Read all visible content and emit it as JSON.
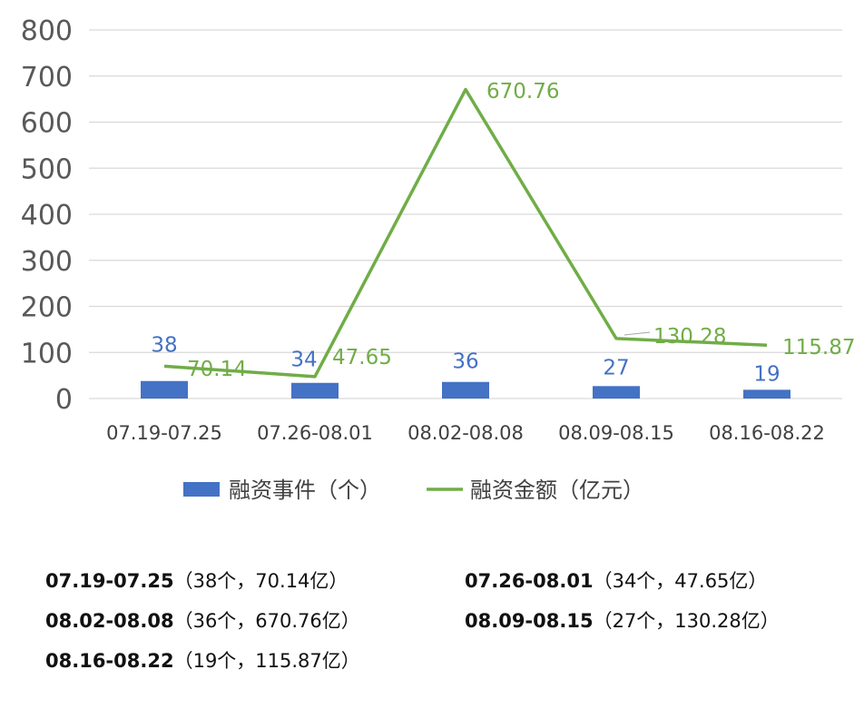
{
  "chart_data": {
    "type": "bar+line",
    "categories": [
      "07.19-07.25",
      "07.26-08.01",
      "08.02-08.08",
      "08.09-08.15",
      "08.16-08.22"
    ],
    "series": [
      {
        "name": "融资事件（个）",
        "type": "bar",
        "values": [
          38,
          34,
          36,
          27,
          19
        ],
        "color": "#4472C4"
      },
      {
        "name": "融资金额（亿元）",
        "type": "line",
        "values": [
          70.14,
          47.65,
          670.76,
          130.28,
          115.87
        ],
        "color": "#70AD47"
      }
    ],
    "data_labels": {
      "bars": [
        "38",
        "34",
        "36",
        "27",
        "19"
      ],
      "line": [
        "70.14",
        "47.65",
        "670.76",
        "130.28",
        "115.87"
      ]
    },
    "y_ticks": [
      "0",
      "100",
      "200",
      "300",
      "400",
      "500",
      "600",
      "700",
      "800"
    ],
    "ylim": [
      0,
      800
    ],
    "grid": true,
    "legend_position": "bottom"
  },
  "notes": [
    {
      "period": "07.19-07.25",
      "detail": "（38个，70.14亿）"
    },
    {
      "period": "07.26-08.01",
      "detail": "（34个，47.65亿）"
    },
    {
      "period": "08.02-08.08",
      "detail": "（36个，670.76亿）"
    },
    {
      "period": "08.09-08.15",
      "detail": "（27个，130.28亿）"
    },
    {
      "period": "08.16-08.22",
      "detail": "（19个，115.87亿）"
    }
  ]
}
